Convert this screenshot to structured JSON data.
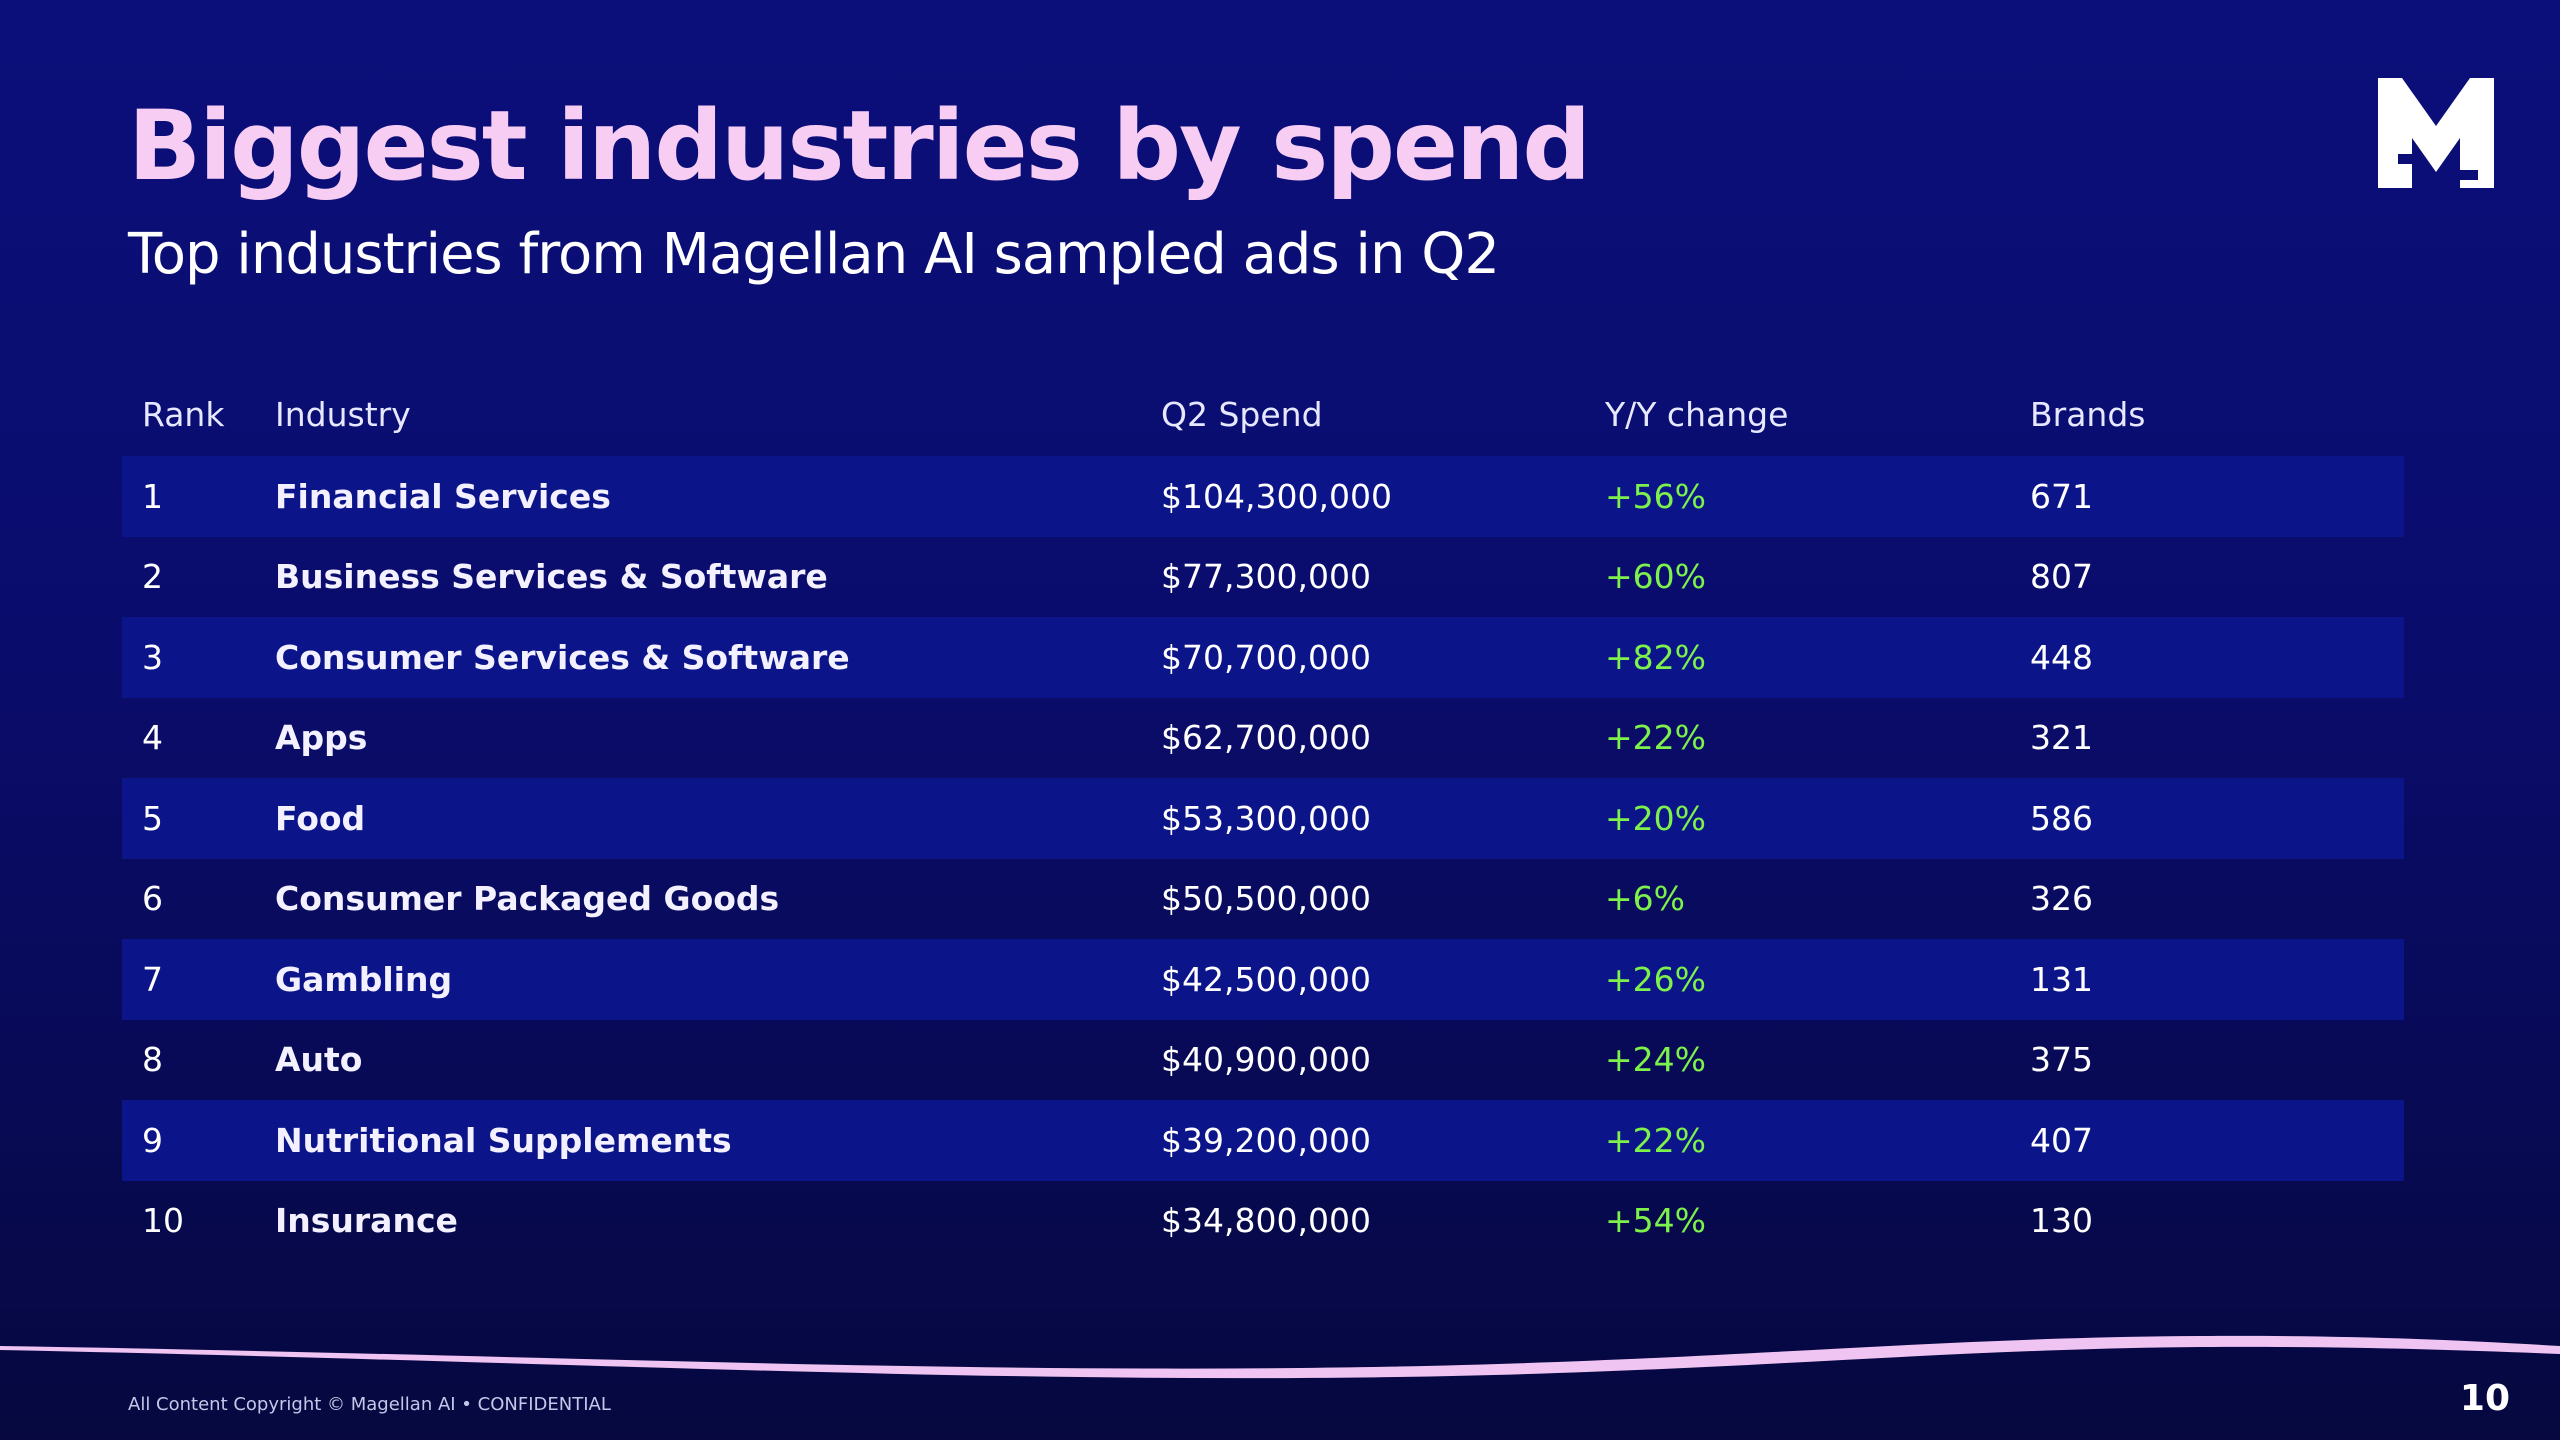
{
  "slide": {
    "title": "Biggest industries by spend",
    "subtitle": "Top industries from Magellan AI sampled ads in Q2",
    "page_number": "10",
    "footer": "All Content Copyright © Magellan AI • CONFIDENTIAL"
  },
  "logo": {
    "icon": "magellan-m-logo"
  },
  "colors": {
    "title": "#f7cdf4",
    "change_positive": "#7df24a",
    "stripe": "#0c148a",
    "wave": "#f0c4f2"
  },
  "table": {
    "headers": {
      "rank": "Rank",
      "industry": "Industry",
      "spend": "Q2 Spend",
      "change": "Y/Y change",
      "brands": "Brands"
    },
    "rows": [
      {
        "rank": "1",
        "industry": "Financial Services",
        "spend": "$104,300,000",
        "change": "+56%",
        "brands": "671"
      },
      {
        "rank": "2",
        "industry": "Business Services & Software",
        "spend": "$77,300,000",
        "change": "+60%",
        "brands": "807"
      },
      {
        "rank": "3",
        "industry": "Consumer Services & Software",
        "spend": "$70,700,000",
        "change": "+82%",
        "brands": "448"
      },
      {
        "rank": "4",
        "industry": "Apps",
        "spend": "$62,700,000",
        "change": "+22%",
        "brands": "321"
      },
      {
        "rank": "5",
        "industry": "Food",
        "spend": "$53,300,000",
        "change": "+20%",
        "brands": "586"
      },
      {
        "rank": "6",
        "industry": "Consumer Packaged Goods",
        "spend": "$50,500,000",
        "change": "+6%",
        "brands": "326"
      },
      {
        "rank": "7",
        "industry": "Gambling",
        "spend": "$42,500,000",
        "change": "+26%",
        "brands": "131"
      },
      {
        "rank": "8",
        "industry": "Auto",
        "spend": "$40,900,000",
        "change": "+24%",
        "brands": "375"
      },
      {
        "rank": "9",
        "industry": "Nutritional Supplements",
        "spend": "$39,200,000",
        "change": "+22%",
        "brands": "407"
      },
      {
        "rank": "10",
        "industry": "Insurance",
        "spend": "$34,800,000",
        "change": "+54%",
        "brands": "130"
      }
    ]
  }
}
